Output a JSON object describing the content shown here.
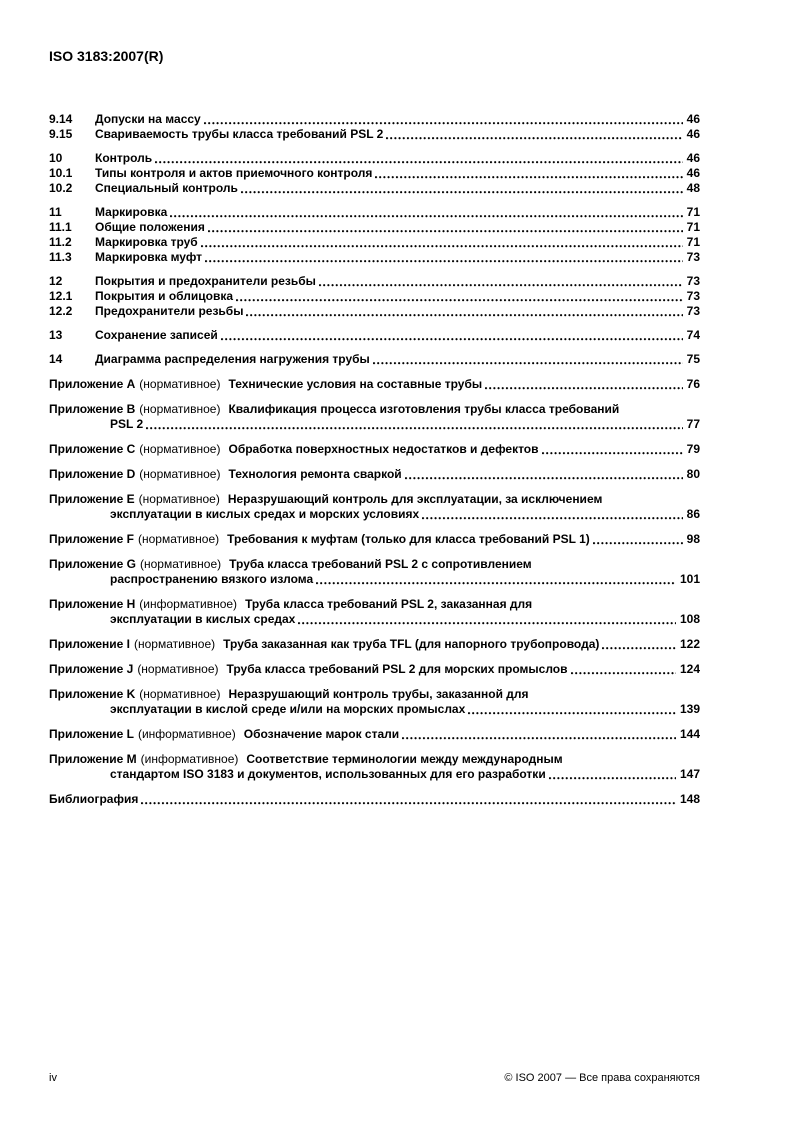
{
  "header": {
    "title": "ISO 3183:2007(R)"
  },
  "toc": {
    "sections": [
      {
        "num": "9.14",
        "title": "Допуски на массу",
        "page": "46"
      },
      {
        "num": "9.15",
        "title": "Свариваемость трубы класса требований PSL 2",
        "page": "46"
      },
      {
        "num": "10",
        "title": "Контроль",
        "page": "46"
      },
      {
        "num": "10.1",
        "title": "Типы контроля и актов приемочного контроля",
        "page": "46"
      },
      {
        "num": "10.2",
        "title": "Специальный контроль",
        "page": "48"
      },
      {
        "num": "11",
        "title": "Маркировка",
        "page": "71"
      },
      {
        "num": "11.1",
        "title": "Общие положения",
        "page": "71"
      },
      {
        "num": "11.2",
        "title": "Маркировка труб",
        "page": "71"
      },
      {
        "num": "11.3",
        "title": "Маркировка муфт",
        "page": "73"
      },
      {
        "num": "12",
        "title": "Покрытия и предохранители резьбы",
        "page": "73"
      },
      {
        "num": "12.1",
        "title": "Покрытия и облицовка",
        "page": "73"
      },
      {
        "num": "12.2",
        "title": "Предохранители резьбы",
        "page": "73"
      },
      {
        "num": "13",
        "title": "Сохранение записей",
        "page": "74"
      },
      {
        "num": "14",
        "title": "Диаграмма распределения нагружения трубы",
        "page": "75"
      }
    ],
    "appendices": [
      {
        "label": "Приложение A",
        "type": "(нормативное)",
        "title": "Технические условия на составные трубы",
        "page": "76"
      },
      {
        "label": "Приложение B",
        "type": "(нормативное)",
        "title": "Квалификация процесса изготовления трубы класса требований",
        "title2": "PSL 2",
        "page": "77"
      },
      {
        "label": "Приложение C",
        "type": "(нормативное)",
        "title": "Обработка поверхностных недостатков и дефектов",
        "page": "79"
      },
      {
        "label": "Приложение D",
        "type": "(нормативное)",
        "title": "Технология ремонта сваркой",
        "page": "80"
      },
      {
        "label": "Приложение E",
        "type": "(нормативное)",
        "title": "Неразрушающий контроль для эксплуатации, за исключением",
        "title2": "эксплуатации в кислых средах и морских условиях",
        "page": "86"
      },
      {
        "label": "Приложение F",
        "type": "(нормативное)",
        "title": "Требования к муфтам (только для класса требований PSL 1)",
        "page": "98"
      },
      {
        "label": "Приложение G",
        "type": "(нормативное)",
        "title": "Труба класса требований PSL 2 с сопротивлением",
        "title2": "распространению вязкого излома",
        "page": "101"
      },
      {
        "label": "Приложение H",
        "type": "(информативное)",
        "title": "Труба класса требований PSL 2, заказанная для",
        "title2": "эксплуатации в кислых средах",
        "page": "108"
      },
      {
        "label": "Приложение I",
        "type": "(нормативное)",
        "title": "Труба заказанная как труба TFL (для напорного трубопровода)",
        "page": "122"
      },
      {
        "label": "Приложение J",
        "type": "(нормативное)",
        "title": "Труба класса требований PSL 2 для морских промыслов",
        "page": "124"
      },
      {
        "label": "Приложение K",
        "type": "(нормативное)",
        "title": "Неразрушающий контроль трубы, заказанной для",
        "title2": "эксплуатации в кислой среде и/или на морских промыслах",
        "page": "139"
      },
      {
        "label": "Приложение L",
        "type": "(информативное)",
        "title": "Обозначение марок стали",
        "page": "144"
      },
      {
        "label": "Приложение M",
        "type": "(информативное)",
        "title": "Соответствие терминологии между международным",
        "title2": "стандартом ISO 3183 и документов, использованных для его разработки",
        "page": "147"
      }
    ],
    "bibliography": {
      "title": "Библиография",
      "page": "148"
    }
  },
  "footer": {
    "page_number": "iv",
    "copyright": "© ISO 2007 — Все права сохраняются"
  }
}
